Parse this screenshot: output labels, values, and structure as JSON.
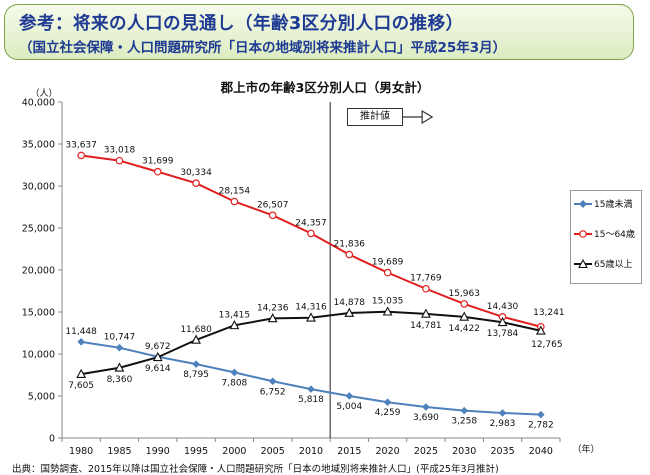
{
  "banner": {
    "title": "参考：将来の人口の見通し（年齢3区分別人口の推移）",
    "subtitle": "（国立社会保障・人口問題研究所「日本の地域別将来推計人口」平成25年3月）"
  },
  "source_note": "出典：国勢調査、2015年以降は国立社会保障・人口問題研究所「日本の地域別将来推計人口」(平成25年3月推計)",
  "colors": {
    "under15": "#4f81bd",
    "working": "#e02020",
    "elderly": "#111111",
    "banner_border": "#7ea346"
  },
  "chart_data": {
    "type": "line",
    "title": "郡上市の年齢3区分別人口（男女計）",
    "ylabel": "（人）",
    "xlabel": "（年）",
    "ylim": [
      0,
      40000
    ],
    "yticks": [
      0,
      5000,
      10000,
      15000,
      20000,
      25000,
      30000,
      35000,
      40000
    ],
    "ytick_labels": [
      "0",
      "5,000",
      "10,000",
      "15,000",
      "20,000",
      "25,000",
      "30,000",
      "35,000",
      "40,000"
    ],
    "categories": [
      "1980",
      "1985",
      "1990",
      "1995",
      "2000",
      "2005",
      "2010",
      "2015",
      "2020",
      "2025",
      "2030",
      "2035",
      "2040"
    ],
    "projection_label": "推計値",
    "projection_start": "2015",
    "legend_position": "right",
    "grid": false,
    "series": [
      {
        "name": "15歳未満",
        "marker": "diamond",
        "values": [
          11448,
          10747,
          9672,
          8795,
          7808,
          6752,
          5818,
          5004,
          4259,
          3690,
          3258,
          2983,
          2782
        ],
        "labels": [
          "11,448",
          "10,747",
          "9,672",
          "8,795",
          "7,808",
          "6,752",
          "5,818",
          "5,004",
          "4,259",
          "3,690",
          "3,258",
          "2,983",
          "2,782"
        ]
      },
      {
        "name": "15～64歳",
        "marker": "circle",
        "values": [
          33637,
          33018,
          31699,
          30334,
          28154,
          26507,
          24357,
          21836,
          19689,
          17769,
          15963,
          14430,
          13241
        ],
        "labels": [
          "33,637",
          "33,018",
          "31,699",
          "30,334",
          "28,154",
          "26,507",
          "24,357",
          "21,836",
          "19,689",
          "17,769",
          "15,963",
          "14,430",
          "13,241"
        ]
      },
      {
        "name": "65歳以上",
        "marker": "triangle",
        "values": [
          7605,
          8360,
          9614,
          11680,
          13415,
          14236,
          14316,
          14878,
          15035,
          14781,
          14422,
          13784,
          12765
        ],
        "labels": [
          "7,605",
          "8,360",
          "9,614",
          "11,680",
          "13,415",
          "14,236",
          "14,316",
          "14,878",
          "15,035",
          "14,781",
          "14,422",
          "13,784",
          "12,765"
        ]
      }
    ]
  }
}
